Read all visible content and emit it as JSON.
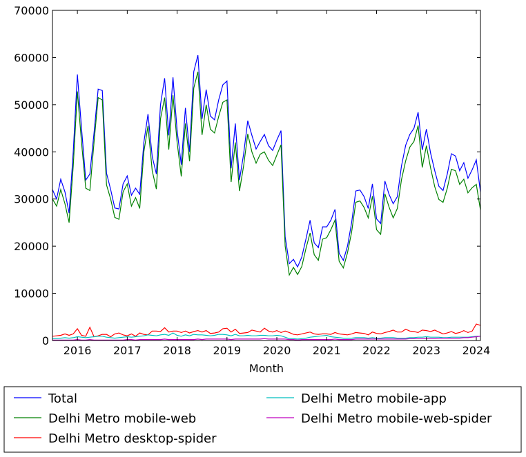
{
  "chart_data": {
    "type": "line",
    "title": "",
    "xlabel": "Month",
    "ylabel": "",
    "ylim": [
      0,
      70000
    ],
    "y_ticks": [
      "0",
      "10000",
      "20000",
      "30000",
      "40000",
      "50000",
      "60000",
      "70000"
    ],
    "y_tick_values": [
      0,
      10000,
      20000,
      30000,
      40000,
      50000,
      60000,
      70000
    ],
    "x_ticks": [
      "2016",
      "2017",
      "2018",
      "2019",
      "2020",
      "2021",
      "2022",
      "2023",
      "2024"
    ],
    "x_start": "2015-07",
    "x_end": "2024-02",
    "frequency": "monthly",
    "grid": false,
    "legend_placement": "below",
    "series": [
      {
        "name": "Total",
        "color": "#0000ff",
        "values": [
          32000,
          30000,
          34200,
          31500,
          27000,
          40000,
          56400,
          45000,
          34000,
          35300,
          44000,
          53300,
          53000,
          35500,
          32000,
          28100,
          27900,
          33200,
          34900,
          30800,
          32300,
          31000,
          42000,
          48000,
          39000,
          35300,
          50000,
          55600,
          43500,
          55800,
          44500,
          37300,
          49300,
          40000,
          57000,
          60500,
          47000,
          53200,
          47600,
          46800,
          51000,
          54200,
          55000,
          36500,
          46000,
          34000,
          39500,
          46600,
          43500,
          40600,
          42200,
          43700,
          41300,
          40300,
          42500,
          44500,
          22000,
          16300,
          17200,
          15600,
          17700,
          21500,
          25500,
          20700,
          19700,
          24100,
          24100,
          25500,
          27800,
          18500,
          17000,
          20000,
          25000,
          31700,
          31900,
          30500,
          28000,
          33200,
          25800,
          24800,
          33800,
          31000,
          29000,
          30500,
          37000,
          41400,
          43700,
          45000,
          48400,
          40400,
          44800,
          39700,
          36000,
          32700,
          31800,
          35200,
          39600,
          39100,
          36000,
          37700,
          34400,
          36200,
          38300,
          31500
        ]
      },
      {
        "name": "Delhi Metro mobile-web",
        "color": "#008000",
        "values": [
          30000,
          28500,
          32000,
          29000,
          25000,
          37000,
          52800,
          42000,
          32300,
          31800,
          42000,
          51500,
          51000,
          33000,
          30000,
          26100,
          25700,
          31500,
          33200,
          28500,
          30300,
          28000,
          40000,
          45500,
          36000,
          32100,
          47000,
          51500,
          40500,
          52000,
          42000,
          34800,
          46000,
          38000,
          53500,
          57000,
          43600,
          50000,
          44800,
          44000,
          47500,
          50500,
          51000,
          33600,
          42000,
          31700,
          37000,
          43800,
          40000,
          37600,
          39500,
          40000,
          38200,
          37100,
          39300,
          41500,
          20000,
          13900,
          15500,
          14000,
          15700,
          19500,
          22800,
          18200,
          17000,
          21500,
          21800,
          23500,
          25500,
          16800,
          15400,
          18600,
          23000,
          29300,
          29600,
          28200,
          26000,
          30600,
          23500,
          22500,
          31100,
          28300,
          26000,
          28000,
          34100,
          38100,
          41000,
          42200,
          45600,
          36700,
          41300,
          36600,
          32600,
          29900,
          29300,
          32200,
          36300,
          36000,
          33100,
          34200,
          31300,
          32400,
          33100,
          27700
        ]
      },
      {
        "name": "Delhi Metro desktop-spider",
        "color": "#ff0000",
        "values": [
          900,
          1000,
          1100,
          1400,
          1100,
          1400,
          2500,
          1100,
          900,
          2800,
          800,
          1000,
          1300,
          1300,
          800,
          1400,
          1600,
          1200,
          1000,
          1400,
          900,
          1600,
          1300,
          1200,
          2000,
          2000,
          1900,
          2700,
          1800,
          2000,
          2000,
          1700,
          2000,
          1600,
          1900,
          2100,
          1800,
          2100,
          1500,
          1600,
          1800,
          2500,
          2600,
          1800,
          2400,
          1500,
          1600,
          1700,
          2200,
          2000,
          1800,
          2600,
          2000,
          1800,
          2100,
          1700,
          2000,
          1700,
          1300,
          1200,
          1400,
          1600,
          1800,
          1400,
          1300,
          1400,
          1400,
          1300,
          1700,
          1400,
          1300,
          1200,
          1400,
          1700,
          1600,
          1500,
          1200,
          1800,
          1500,
          1400,
          1700,
          1900,
          2200,
          1800,
          1800,
          2400,
          2000,
          1900,
          1700,
          2200,
          2100,
          1900,
          2200,
          1800,
          1400,
          1600,
          1900,
          1500,
          1700,
          2100,
          1700,
          2000,
          3500,
          3200
        ]
      },
      {
        "name": "Delhi Metro mobile-app",
        "color": "#00bfbf",
        "values": [
          400,
          400,
          500,
          600,
          500,
          600,
          800,
          700,
          600,
          700,
          800,
          900,
          900,
          700,
          600,
          500,
          600,
          700,
          800,
          700,
          800,
          900,
          1000,
          1200,
          1100,
          1000,
          1200,
          1300,
          1100,
          1600,
          1100,
          900,
          1200,
          1000,
          1300,
          1200,
          1200,
          1100,
          1000,
          1100,
          1300,
          1300,
          1200,
          1000,
          1300,
          1000,
          1000,
          1100,
          1000,
          1000,
          1100,
          1100,
          1000,
          1000,
          1100,
          1000,
          700,
          400,
          400,
          300,
          400,
          500,
          700,
          800,
          900,
          1000,
          1100,
          800,
          700,
          600,
          500,
          500,
          500,
          600,
          600,
          600,
          500,
          600,
          500,
          500,
          600,
          600,
          600,
          500,
          500,
          500,
          600,
          600,
          700,
          700,
          800,
          700,
          700,
          700,
          600,
          600,
          700,
          700,
          700,
          700,
          700,
          800,
          900,
          900
        ]
      },
      {
        "name": "Delhi Metro mobile-web-spider",
        "color": "#bf00bf",
        "values": [
          100,
          100,
          100,
          100,
          100,
          100,
          200,
          100,
          100,
          200,
          100,
          100,
          100,
          100,
          100,
          100,
          100,
          100,
          200,
          200,
          100,
          200,
          200,
          200,
          200,
          200,
          200,
          300,
          200,
          200,
          200,
          200,
          200,
          200,
          200,
          300,
          200,
          300,
          300,
          300,
          300,
          300,
          300,
          200,
          300,
          300,
          300,
          300,
          300,
          300,
          300,
          400,
          300,
          300,
          300,
          300,
          300,
          200,
          200,
          100,
          200,
          200,
          200,
          200,
          200,
          200,
          200,
          200,
          300,
          200,
          200,
          200,
          200,
          300,
          300,
          300,
          300,
          300,
          300,
          300,
          300,
          300,
          300,
          300,
          300,
          300,
          400,
          400,
          400,
          400,
          400,
          400,
          400,
          500,
          500,
          500,
          500,
          500,
          500,
          600,
          600,
          700,
          800,
          900
        ]
      }
    ]
  }
}
